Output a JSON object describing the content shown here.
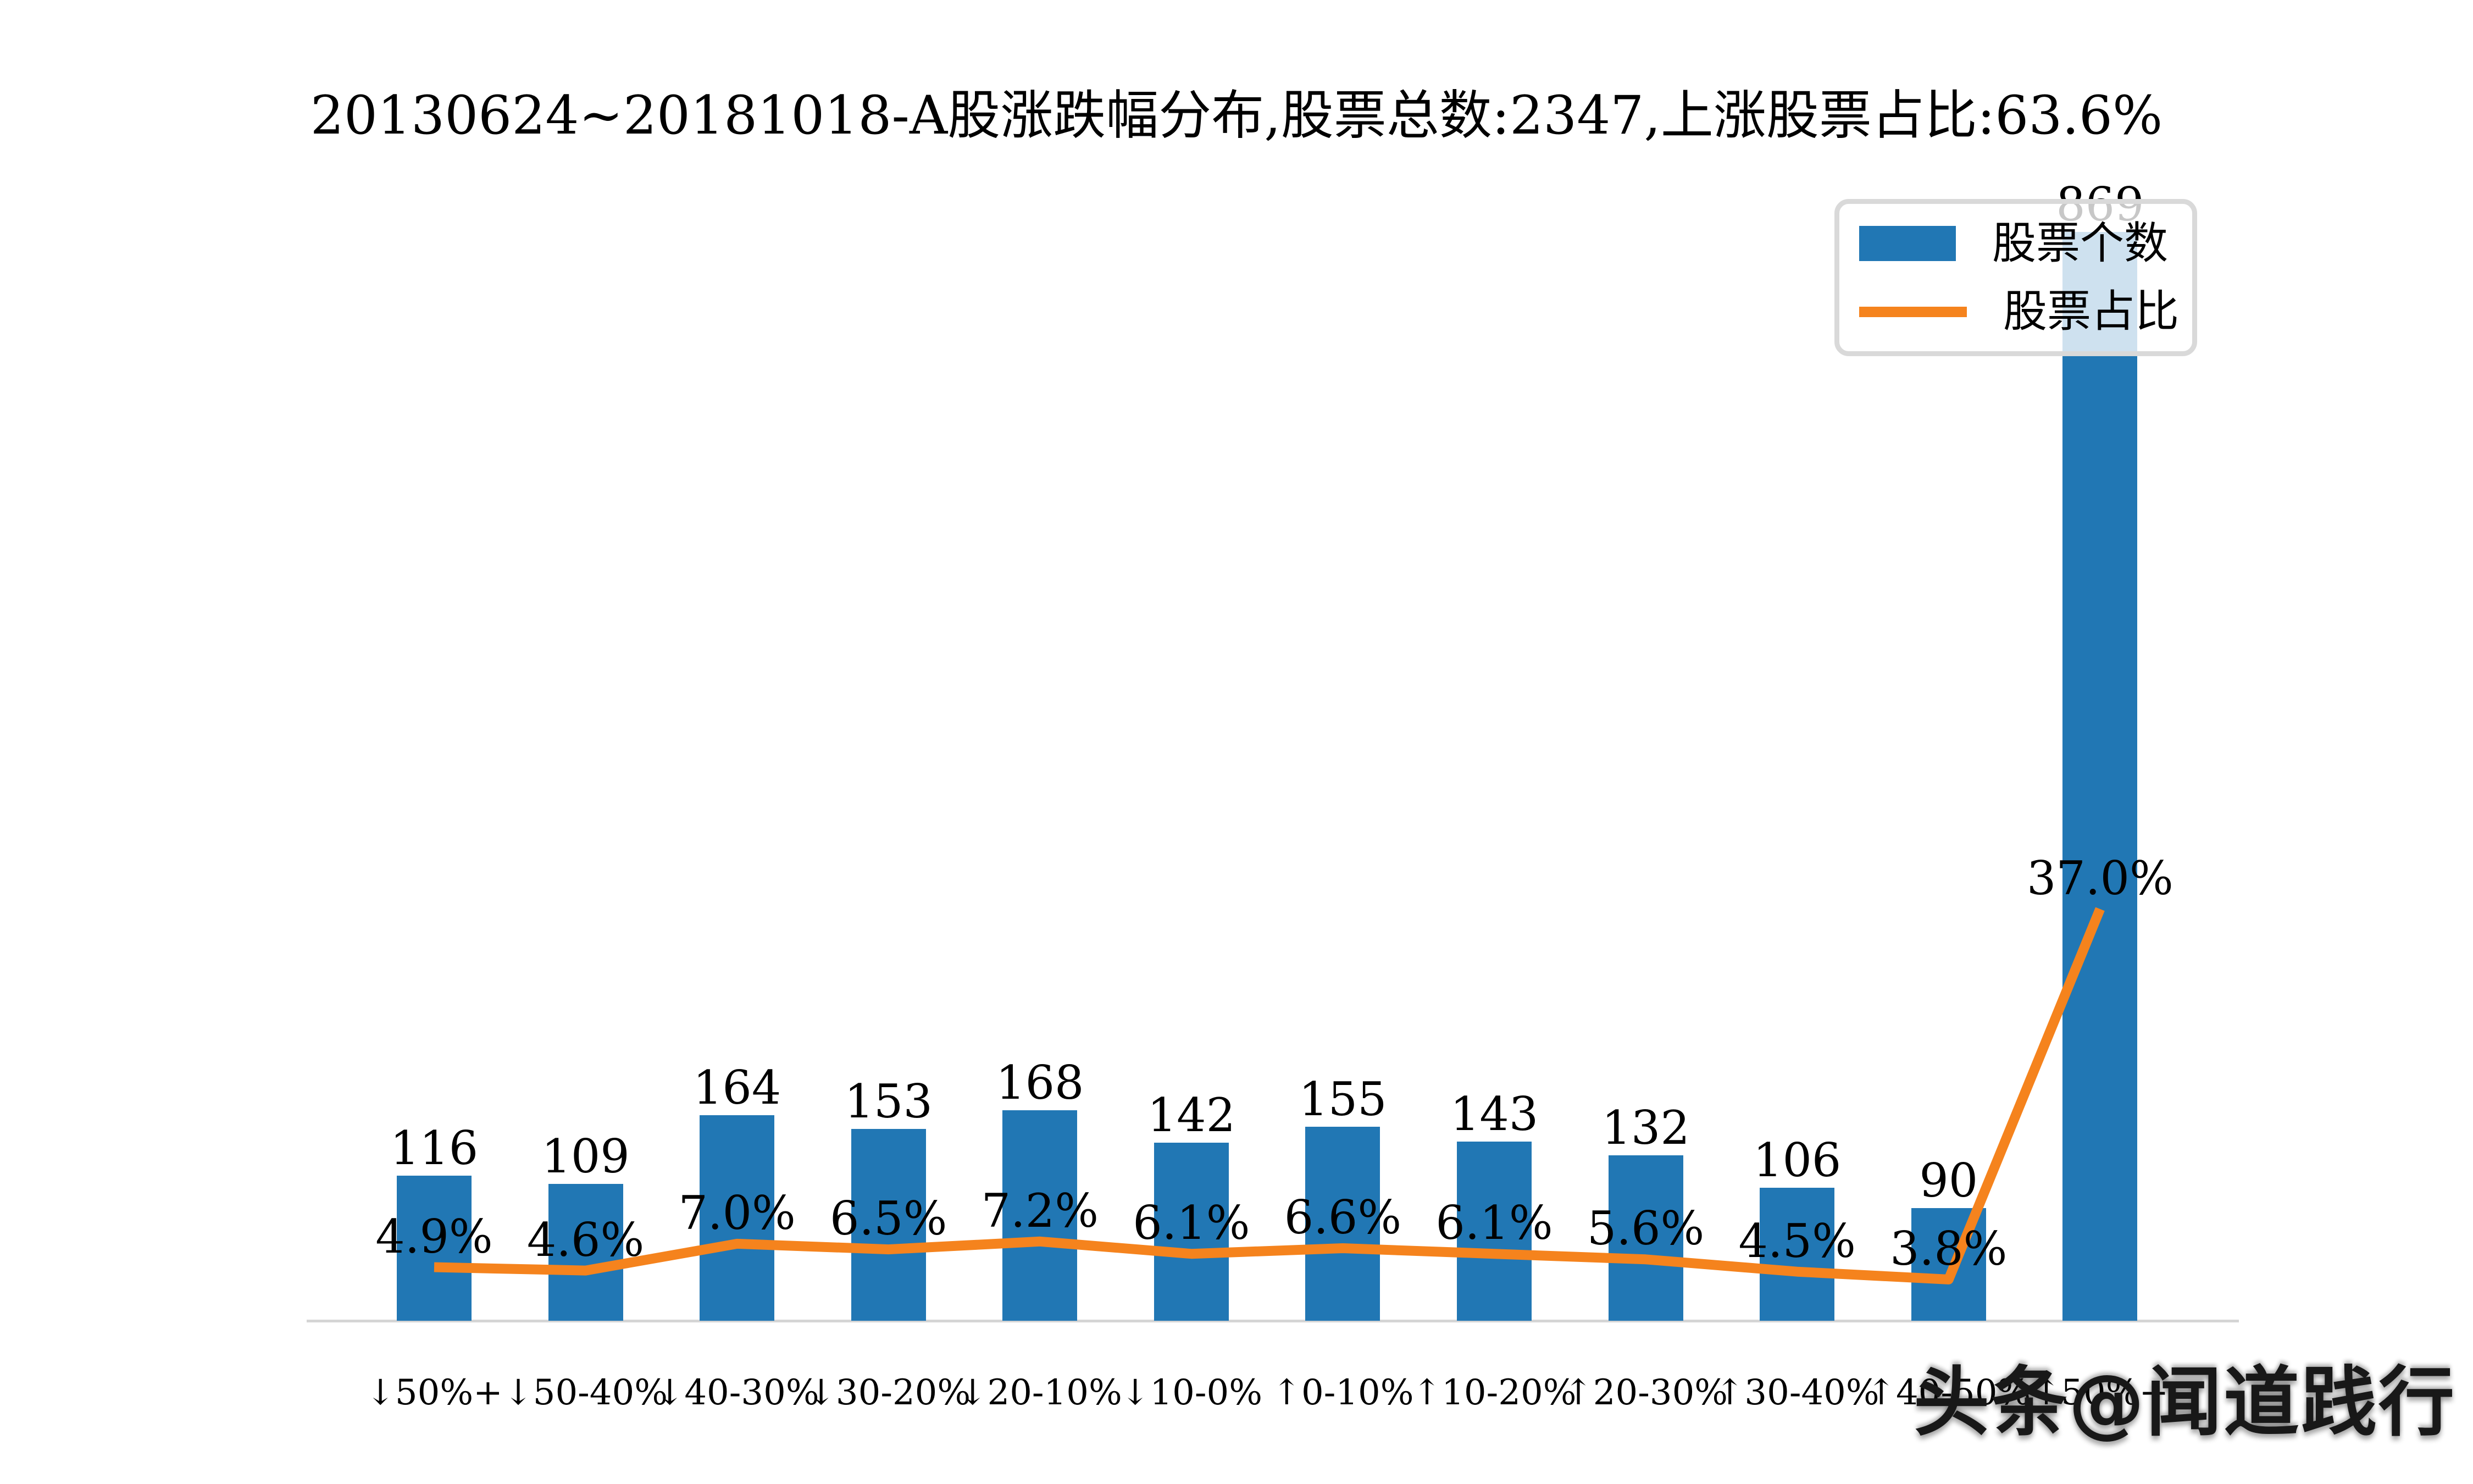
{
  "page": {
    "background": "#ffffff"
  },
  "header": {
    "title": "20130624~20181018-A股涨跌幅分布,股票总数:2347,上涨股票占比:63.6%"
  },
  "legend": {
    "position": "upper-right",
    "items": [
      {
        "label": "股票个数",
        "marker": "bar-swatch",
        "color": "#2177b4"
      },
      {
        "label": "股票占比",
        "marker": "line-swatch",
        "color": "#f5831d"
      }
    ]
  },
  "watermark": {
    "text": "头条@闻道践行"
  },
  "chart_data": {
    "type": "bar",
    "combo": "bar+line",
    "title": "20130624~20181018-A股涨跌幅分布,股票总数:2347,上涨股票占比:63.6%",
    "categories": [
      "↓50%+",
      "↓50-40%",
      "↓40-30%",
      "↓30-20%",
      "↓20-10%",
      "↓10-0%",
      "↑0-10%",
      "↑10-20%",
      "↑20-30%",
      "↑30-40%",
      "↑40-50%",
      "↑50%+"
    ],
    "series": [
      {
        "name": "股票个数",
        "type": "bar",
        "color": "#2177b4",
        "values": [
          116,
          109,
          164,
          153,
          168,
          142,
          155,
          143,
          132,
          106,
          90,
          869
        ],
        "value_labels": [
          "116",
          "109",
          "164",
          "153",
          "168",
          "142",
          "155",
          "143",
          "132",
          "106",
          "90",
          "869"
        ]
      },
      {
        "name": "股票占比",
        "type": "line",
        "color": "#f5831d",
        "values": [
          4.9,
          4.6,
          7.0,
          6.5,
          7.2,
          6.1,
          6.6,
          6.1,
          5.6,
          4.5,
          3.8,
          37.0
        ],
        "value_labels": [
          "4.9%",
          "4.6%",
          "7.0%",
          "6.5%",
          "7.2%",
          "6.1%",
          "6.6%",
          "6.1%",
          "5.6%",
          "4.5%",
          "3.8%",
          "37.0%"
        ]
      }
    ],
    "y_axes_visible": false,
    "grid": false,
    "legend_position": "upper right",
    "axis_line_color": "#d5d5d5",
    "annotations_color": "#000000"
  }
}
